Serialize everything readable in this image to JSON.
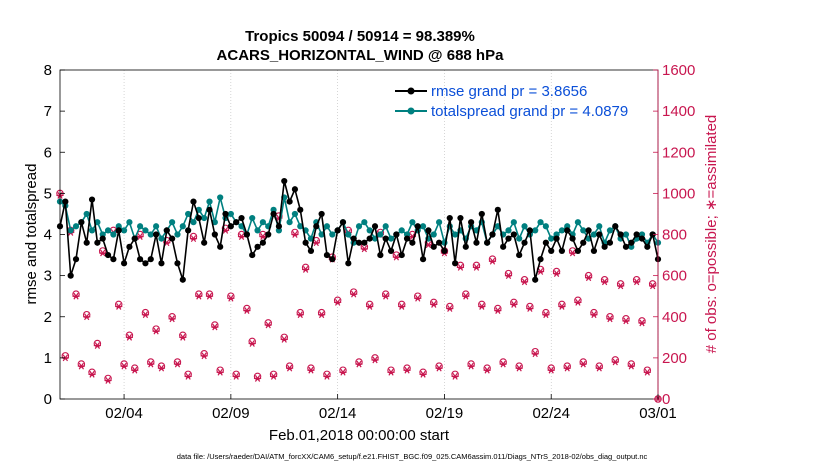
{
  "chart_data": {
    "type": "line",
    "title": "Tropics 50094 / 50914 = 98.389%",
    "subtitle": "ACARS_HORIZONTAL_WIND @ 688 hPa",
    "xlabel": "Feb.01,2018 00:00:00 start",
    "ylabel": "rmse and totalspread",
    "ylabel_right": "# of obs: o=possible; ∗=assimilated",
    "footer": "data file: /Users/raeder/DAI/ATM_forcXX/CAM6_setup/f.e21.FHIST_BGC.f09_025.CAM6assim.011/Diags_NTrS_2018-02/obs_diag_output.nc",
    "xlim": [
      1.0,
      29.0
    ],
    "ylim": [
      0,
      8
    ],
    "ylim_right": [
      0,
      1600
    ],
    "x_ticks": [
      {
        "value": 4,
        "label": "02/04"
      },
      {
        "value": 9,
        "label": "02/09"
      },
      {
        "value": 14,
        "label": "02/14"
      },
      {
        "value": 19,
        "label": "02/19"
      },
      {
        "value": 24,
        "label": "02/24"
      },
      {
        "value": 29,
        "label": "03/01"
      }
    ],
    "y_ticks": [
      "0",
      "1",
      "2",
      "3",
      "4",
      "5",
      "6",
      "7",
      "8"
    ],
    "y_ticks_right": [
      "0",
      "200",
      "400",
      "600",
      "800",
      "1000",
      "1200",
      "1400",
      "1600"
    ],
    "legend": [
      {
        "name": "rmse grand pr = 3.8656",
        "color": "#000000"
      },
      {
        "name": "totalspread grand pr = 4.0879",
        "color": "#008080"
      }
    ],
    "x_start": 1.0,
    "x_step": 0.25,
    "series": [
      {
        "name": "rmse",
        "color": "#000000",
        "axis": "left",
        "values": [
          4.2,
          4.8,
          3.0,
          3.4,
          4.3,
          3.8,
          4.85,
          3.8,
          3.9,
          3.5,
          3.4,
          4.1,
          3.3,
          3.7,
          3.9,
          3.4,
          3.3,
          3.4,
          4.0,
          3.3,
          4.1,
          3.9,
          3.3,
          2.9,
          4.1,
          4.8,
          4.4,
          3.8,
          4.6,
          4.0,
          3.7,
          4.5,
          4.2,
          4.3,
          4.4,
          4.0,
          3.5,
          3.7,
          3.8,
          4.0,
          4.5,
          4.2,
          5.3,
          4.8,
          5.1,
          4.6,
          3.8,
          3.6,
          4.2,
          4.5,
          3.5,
          3.4,
          4.1,
          4.3,
          3.3,
          3.9,
          3.8,
          3.8,
          3.9,
          4.2,
          3.5,
          3.9,
          3.6,
          4.0,
          3.5,
          3.9,
          3.8,
          4.2,
          3.4,
          4.1,
          3.7,
          3.8,
          3.6,
          4.4,
          3.3,
          4.4,
          3.7,
          4.3,
          3.8,
          4.5,
          3.8,
          4.0,
          4.6,
          3.7,
          3.9,
          4.0,
          3.5,
          3.8,
          4.1,
          2.9,
          3.4,
          3.8,
          3.6,
          3.9,
          3.6,
          4.1,
          3.9,
          3.6,
          3.8,
          4.1,
          3.6,
          4.0,
          3.7,
          3.8,
          4.2,
          4.0,
          3.7,
          3.8,
          4.0,
          3.9,
          3.7,
          4.0,
          3.4
        ]
      },
      {
        "name": "totalspread",
        "color": "#008080",
        "axis": "left",
        "values": [
          4.8,
          4.7,
          4.1,
          4.2,
          4.3,
          4.5,
          4.1,
          4.3,
          4.0,
          4.1,
          4.0,
          4.2,
          4.1,
          4.3,
          3.9,
          4.2,
          4.1,
          4.0,
          4.2,
          3.9,
          4.1,
          4.3,
          4.0,
          4.2,
          4.5,
          4.3,
          4.6,
          4.4,
          4.8,
          4.3,
          4.9,
          4.4,
          4.5,
          4.3,
          4.2,
          4.0,
          4.4,
          4.1,
          4.3,
          4.2,
          4.6,
          4.1,
          4.9,
          4.3,
          4.5,
          4.2,
          4.1,
          3.9,
          4.3,
          4.0,
          4.2,
          4.0,
          4.1,
          4.3,
          4.0,
          3.8,
          4.2,
          4.3,
          4.1,
          3.9,
          4.0,
          4.2,
          3.9,
          4.0,
          4.1,
          4.0,
          4.3,
          4.1,
          4.2,
          3.9,
          4.0,
          4.3,
          3.8,
          4.2,
          4.0,
          4.1,
          3.9,
          4.2,
          4.1,
          4.3,
          3.8,
          4.0,
          4.2,
          4.0,
          4.1,
          4.3,
          3.9,
          4.2,
          4.0,
          4.1,
          4.3,
          4.2,
          3.9,
          4.0,
          4.1,
          4.2,
          4.0,
          4.3,
          4.1,
          3.9,
          4.0,
          4.2,
          3.8,
          4.1,
          4.2,
          3.9,
          4.0,
          3.7,
          3.9,
          4.0,
          3.8,
          4.0,
          3.8
        ]
      },
      {
        "name": "possible",
        "color": "#c8164f",
        "axis": "right",
        "marker": "o",
        "values": [
          1000,
          210,
          820,
          510,
          170,
          410,
          130,
          270,
          720,
          100,
          820,
          460,
          170,
          310,
          150,
          800,
          420,
          180,
          340,
          160,
          770,
          400,
          180,
          310,
          120,
          790,
          510,
          220,
          510,
          360,
          140,
          830,
          500,
          120,
          800,
          440,
          280,
          110,
          800,
          370,
          120,
          890,
          300,
          160,
          810,
          420,
          640,
          150,
          770,
          420,
          120,
          690,
          480,
          140,
          820,
          520,
          180,
          740,
          460,
          200,
          810,
          510,
          140,
          700,
          460,
          150,
          800,
          500,
          130,
          760,
          470,
          160,
          720,
          450,
          120,
          650,
          510,
          170,
          650,
          460,
          150,
          680,
          440,
          180,
          610,
          470,
          160,
          580,
          450,
          230,
          630,
          420,
          150,
          620,
          460,
          160,
          720,
          480,
          180,
          600,
          420,
          160,
          580,
          400,
          190,
          560,
          390,
          170,
          580,
          380,
          140,
          560,
          0
        ]
      },
      {
        "name": "assimilated",
        "color": "#c8164f",
        "axis": "right",
        "marker": "*",
        "values": [
          990,
          200,
          810,
          500,
          160,
          400,
          120,
          260,
          710,
          90,
          810,
          450,
          160,
          300,
          140,
          790,
          410,
          170,
          330,
          150,
          760,
          390,
          170,
          300,
          110,
          780,
          500,
          210,
          500,
          350,
          130,
          820,
          490,
          110,
          790,
          430,
          270,
          100,
          790,
          360,
          110,
          880,
          290,
          150,
          800,
          410,
          630,
          140,
          760,
          410,
          110,
          680,
          470,
          130,
          810,
          510,
          170,
          730,
          450,
          190,
          800,
          500,
          130,
          690,
          450,
          140,
          790,
          490,
          120,
          750,
          460,
          150,
          710,
          440,
          110,
          640,
          500,
          160,
          640,
          450,
          140,
          670,
          430,
          170,
          600,
          460,
          150,
          570,
          440,
          220,
          620,
          410,
          140,
          610,
          450,
          150,
          710,
          470,
          170,
          590,
          410,
          150,
          570,
          390,
          180,
          550,
          380,
          160,
          570,
          370,
          130,
          550,
          0
        ]
      }
    ]
  }
}
